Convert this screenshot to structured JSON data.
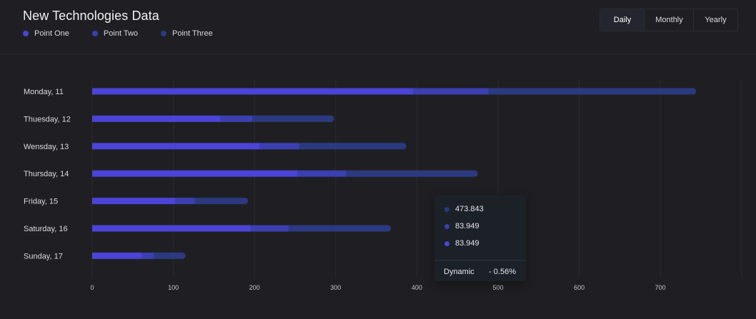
{
  "header": {
    "title": "New Technologies Data"
  },
  "legend": [
    {
      "label": "Point One",
      "color": "#4b44d6"
    },
    {
      "label": "Point Two",
      "color": "#3b3fb0"
    },
    {
      "label": "Point Three",
      "color": "#2b3a80"
    }
  ],
  "period_tabs": [
    {
      "label": "Daily",
      "active": true
    },
    {
      "label": "Monthly",
      "active": false
    },
    {
      "label": "Yearly",
      "active": false
    }
  ],
  "chart_data": {
    "type": "bar",
    "orientation": "horizontal",
    "stacked": true,
    "categories": [
      "Monday, 11",
      "Thuesday, 12",
      "Wensday, 13",
      "Thursday, 14",
      "Friday, 15",
      "Saturday, 16",
      "Sunday, 17"
    ],
    "series": [
      {
        "name": "Point One",
        "values": [
          395,
          158,
          206,
          253,
          102,
          195,
          61
        ],
        "color": "#4b44d6"
      },
      {
        "name": "Point Two",
        "values": [
          93,
          39,
          49,
          60,
          24,
          47,
          15
        ],
        "color": "#3b3fb0"
      },
      {
        "name": "Point Three",
        "values": [
          256,
          101,
          132,
          162,
          66,
          126,
          39
        ],
        "color": "#2b3a80"
      }
    ],
    "xlim": [
      0,
      800
    ],
    "xticks": [
      0,
      100,
      200,
      300,
      400,
      500,
      600,
      700
    ],
    "grid": true
  },
  "tooltip": {
    "rows": [
      {
        "value": "473.843",
        "color": "#2b3a80"
      },
      {
        "value": "83.949",
        "color": "#3b3fb0"
      },
      {
        "value": "83.949",
        "color": "#4b44d6"
      }
    ],
    "footer_label": "Dynamic",
    "footer_value": "- 0.56%"
  }
}
